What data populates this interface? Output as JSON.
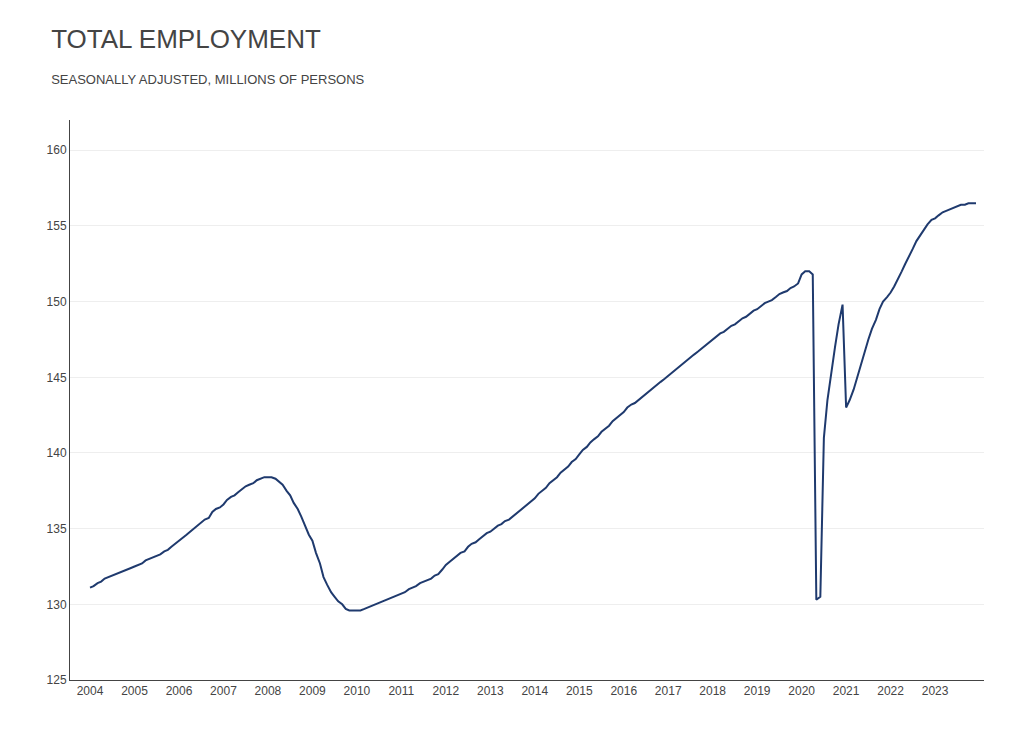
{
  "chart_data": {
    "type": "line",
    "title": "TOTAL EMPLOYMENT",
    "subtitle": "SEASONALLY ADJUSTED, MILLIONS OF PERSONS",
    "color": "#1f3a6e",
    "x": [
      2004.0,
      2004.08,
      2004.17,
      2004.25,
      2004.33,
      2004.42,
      2004.5,
      2004.58,
      2004.67,
      2004.75,
      2004.83,
      2004.92,
      2005.0,
      2005.08,
      2005.17,
      2005.25,
      2005.33,
      2005.42,
      2005.5,
      2005.58,
      2005.67,
      2005.75,
      2005.83,
      2005.92,
      2006.0,
      2006.08,
      2006.17,
      2006.25,
      2006.33,
      2006.42,
      2006.5,
      2006.58,
      2006.67,
      2006.75,
      2006.83,
      2006.92,
      2007.0,
      2007.08,
      2007.17,
      2007.25,
      2007.33,
      2007.42,
      2007.5,
      2007.58,
      2007.67,
      2007.75,
      2007.83,
      2007.92,
      2008.0,
      2008.08,
      2008.17,
      2008.25,
      2008.33,
      2008.42,
      2008.5,
      2008.58,
      2008.67,
      2008.75,
      2008.83,
      2008.92,
      2009.0,
      2009.08,
      2009.17,
      2009.25,
      2009.33,
      2009.42,
      2009.5,
      2009.58,
      2009.67,
      2009.75,
      2009.83,
      2009.92,
      2010.0,
      2010.08,
      2010.17,
      2010.25,
      2010.33,
      2010.42,
      2010.5,
      2010.58,
      2010.67,
      2010.75,
      2010.83,
      2010.92,
      2011.0,
      2011.08,
      2011.17,
      2011.25,
      2011.33,
      2011.42,
      2011.5,
      2011.58,
      2011.67,
      2011.75,
      2011.83,
      2011.92,
      2012.0,
      2012.08,
      2012.17,
      2012.25,
      2012.33,
      2012.42,
      2012.5,
      2012.58,
      2012.67,
      2012.75,
      2012.83,
      2012.92,
      2013.0,
      2013.08,
      2013.17,
      2013.25,
      2013.33,
      2013.42,
      2013.5,
      2013.58,
      2013.67,
      2013.75,
      2013.83,
      2013.92,
      2014.0,
      2014.08,
      2014.17,
      2014.25,
      2014.33,
      2014.42,
      2014.5,
      2014.58,
      2014.67,
      2014.75,
      2014.83,
      2014.92,
      2015.0,
      2015.08,
      2015.17,
      2015.25,
      2015.33,
      2015.42,
      2015.5,
      2015.58,
      2015.67,
      2015.75,
      2015.83,
      2015.92,
      2016.0,
      2016.08,
      2016.17,
      2016.25,
      2016.33,
      2016.42,
      2016.5,
      2016.58,
      2016.67,
      2016.75,
      2016.83,
      2016.92,
      2017.0,
      2017.08,
      2017.17,
      2017.25,
      2017.33,
      2017.42,
      2017.5,
      2017.58,
      2017.67,
      2017.75,
      2017.83,
      2017.92,
      2018.0,
      2018.08,
      2018.17,
      2018.25,
      2018.33,
      2018.42,
      2018.5,
      2018.58,
      2018.67,
      2018.75,
      2018.83,
      2018.92,
      2019.0,
      2019.08,
      2019.17,
      2019.25,
      2019.33,
      2019.42,
      2019.5,
      2019.58,
      2019.67,
      2019.75,
      2019.83,
      2019.92,
      2020.0,
      2020.08,
      2020.17,
      2020.25,
      2020.33,
      2020.42,
      2020.5,
      2020.58,
      2020.67,
      2020.75,
      2020.83,
      2020.92,
      2021.0,
      2021.08,
      2021.17,
      2021.25,
      2021.33,
      2021.42,
      2021.5,
      2021.58,
      2021.67,
      2021.75,
      2021.83,
      2021.92,
      2022.0,
      2022.08,
      2022.17,
      2022.25,
      2022.33,
      2022.42,
      2022.5,
      2022.58,
      2022.67,
      2022.75,
      2022.83,
      2022.92,
      2023.0,
      2023.08,
      2023.17,
      2023.25,
      2023.33,
      2023.42,
      2023.5,
      2023.58,
      2023.67,
      2023.75,
      2023.83,
      2023.92
    ],
    "values": [
      131.1,
      131.2,
      131.4,
      131.5,
      131.7,
      131.8,
      131.9,
      132.0,
      132.1,
      132.2,
      132.3,
      132.4,
      132.5,
      132.6,
      132.7,
      132.9,
      133.0,
      133.1,
      133.2,
      133.3,
      133.5,
      133.6,
      133.8,
      134.0,
      134.2,
      134.4,
      134.6,
      134.8,
      135.0,
      135.2,
      135.4,
      135.6,
      135.7,
      136.1,
      136.3,
      136.4,
      136.6,
      136.9,
      137.1,
      137.2,
      137.4,
      137.6,
      137.8,
      137.9,
      138.0,
      138.2,
      138.3,
      138.4,
      138.4,
      138.4,
      138.3,
      138.1,
      137.9,
      137.5,
      137.2,
      136.7,
      136.3,
      135.8,
      135.2,
      134.6,
      134.2,
      133.4,
      132.7,
      131.8,
      131.3,
      130.8,
      130.5,
      130.2,
      130.0,
      129.7,
      129.6,
      129.6,
      129.6,
      129.6,
      129.7,
      129.8,
      129.9,
      130.0,
      130.1,
      130.2,
      130.3,
      130.4,
      130.5,
      130.6,
      130.7,
      130.8,
      131.0,
      131.1,
      131.2,
      131.4,
      131.5,
      131.6,
      131.7,
      131.9,
      132.0,
      132.3,
      132.6,
      132.8,
      133.0,
      133.2,
      133.4,
      133.5,
      133.8,
      134.0,
      134.1,
      134.3,
      134.5,
      134.7,
      134.8,
      135.0,
      135.2,
      135.3,
      135.5,
      135.6,
      135.8,
      136.0,
      136.2,
      136.4,
      136.6,
      136.8,
      137.0,
      137.3,
      137.5,
      137.7,
      138.0,
      138.2,
      138.4,
      138.7,
      138.9,
      139.1,
      139.4,
      139.6,
      139.9,
      140.2,
      140.4,
      140.7,
      140.9,
      141.1,
      141.4,
      141.6,
      141.8,
      142.1,
      142.3,
      142.5,
      142.7,
      143.0,
      143.2,
      143.3,
      143.5,
      143.7,
      143.9,
      144.1,
      144.3,
      144.5,
      144.7,
      144.9,
      145.1,
      145.3,
      145.5,
      145.7,
      145.9,
      146.1,
      146.3,
      146.5,
      146.7,
      146.9,
      147.1,
      147.3,
      147.5,
      147.7,
      147.9,
      148.0,
      148.2,
      148.4,
      148.5,
      148.7,
      148.9,
      149.0,
      149.2,
      149.4,
      149.5,
      149.7,
      149.9,
      150.0,
      150.1,
      150.3,
      150.5,
      150.6,
      150.7,
      150.9,
      151.0,
      151.2,
      151.8,
      152.0,
      152.0,
      151.8,
      130.3,
      130.5,
      141.0,
      143.5,
      145.5,
      147.0,
      148.5,
      149.8,
      143.0,
      143.5,
      144.2,
      145.0,
      145.9,
      146.7,
      147.5,
      148.2,
      148.8,
      149.5,
      150.0,
      150.3,
      150.6,
      151.0,
      151.5,
      152.0,
      152.5,
      153.0,
      153.5,
      154.0,
      154.4,
      154.8,
      155.1,
      155.4,
      155.5,
      155.7,
      155.9,
      156.0,
      156.1,
      156.2,
      156.3,
      156.4,
      156.4,
      156.5,
      156.5,
      156.5
    ],
    "xlim": [
      2003.55,
      2024.1
    ],
    "xticks": [
      2004,
      2005,
      2006,
      2007,
      2008,
      2009,
      2010,
      2011,
      2012,
      2013,
      2014,
      2015,
      2016,
      2017,
      2018,
      2019,
      2020,
      2021,
      2022,
      2023
    ],
    "ylim": [
      125,
      162
    ],
    "yticks": [
      125,
      130,
      135,
      140,
      145,
      150,
      155,
      160
    ],
    "grid": "y"
  }
}
